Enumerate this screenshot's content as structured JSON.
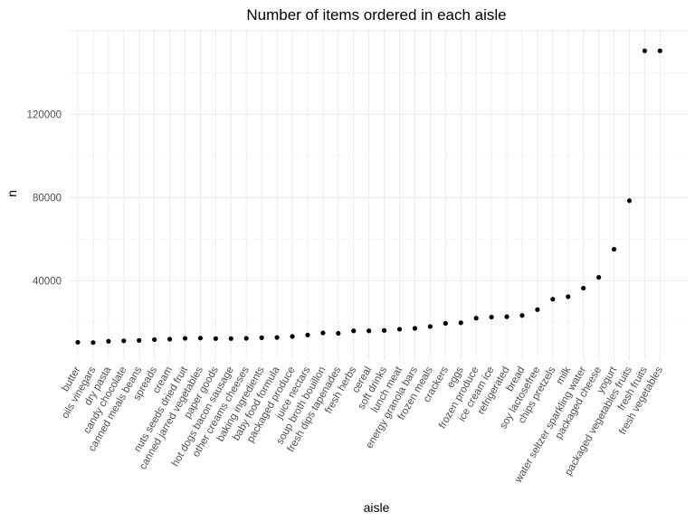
{
  "chart_data": {
    "type": "scatter",
    "title": "Number of items ordered in each aisle",
    "xlabel": "aisle",
    "ylabel": "n",
    "ylim": [
      2000,
      161000
    ],
    "yticks": [
      40000,
      80000,
      120000
    ],
    "ytick_labels": [
      "40000",
      "80000",
      "120000"
    ],
    "grid": true,
    "legend": "none",
    "point_color": "#000000",
    "categories": [
      "butter",
      "oils vinegars",
      "dry pasta",
      "candy chocolate",
      "canned meals beans",
      "spreads",
      "cream",
      "nuts seeds dried fruit",
      "canned jarred vegetables",
      "paper goods",
      "hot dogs bacon sausage",
      "other creams cheeses",
      "baking ingredients",
      "baby food formula",
      "packaged produce",
      "juice nectars",
      "soup broth bouillon",
      "fresh dips tapenades",
      "fresh herbs",
      "cereal",
      "soft drinks",
      "lunch meat",
      "energy granola bars",
      "frozen meals",
      "crackers",
      "eggs",
      "frozen produce",
      "ice cream ice",
      "refrigerated",
      "bread",
      "soy lactosefree",
      "chips pretzels",
      "milk",
      "water seltzer sparkling water",
      "packaged cheese",
      "yogurt",
      "packaged vegetables fruits",
      "fresh fruits",
      "fresh vegetables"
    ],
    "values": [
      10500,
      10400,
      11000,
      11200,
      11400,
      11800,
      12000,
      12400,
      12500,
      12300,
      12300,
      12400,
      12700,
      12800,
      13300,
      14000,
      15000,
      14800,
      16000,
      16000,
      16200,
      16800,
      17200,
      18100,
      19600,
      19900,
      22100,
      22600,
      22800,
      23400,
      26200,
      31200,
      32400,
      36500,
      41700,
      55200,
      78500,
      150500,
      150500
    ]
  }
}
